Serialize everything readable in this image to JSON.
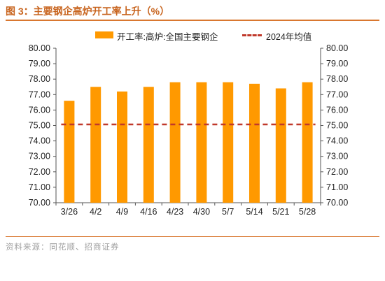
{
  "figure": {
    "title": "图 3：主要钢企高炉开工率上升（%）",
    "source": "资料来源：同花顺、招商证券"
  },
  "colors": {
    "bar": "#FF9900",
    "line": "#C0392B",
    "accent": "#D9772F"
  },
  "chart_data": {
    "type": "bar",
    "categories": [
      "3/26",
      "4/2",
      "4/9",
      "4/16",
      "4/23",
      "4/30",
      "5/7",
      "5/14",
      "5/21",
      "5/28"
    ],
    "series": [
      {
        "name": "开工率:高炉:全国主要钢企",
        "type": "bar",
        "values": [
          76.6,
          77.5,
          77.2,
          77.5,
          77.8,
          77.8,
          77.8,
          77.7,
          77.4,
          77.8
        ]
      },
      {
        "name": "2024年均值",
        "type": "line",
        "style": "dashed",
        "values": [
          75.07,
          75.07,
          75.07,
          75.07,
          75.07,
          75.07,
          75.07,
          75.07,
          75.07,
          75.07
        ]
      }
    ],
    "ylim": [
      70,
      80
    ],
    "yticks": [
      "70.00",
      "71.00",
      "72.00",
      "73.00",
      "74.00",
      "75.00",
      "76.00",
      "77.00",
      "78.00",
      "79.00",
      "80.00"
    ],
    "y2ticks": [
      "70.00",
      "71.00",
      "72.00",
      "73.00",
      "74.00",
      "75.00",
      "76.00",
      "77.00",
      "78.00",
      "79.00",
      "80.00"
    ],
    "grid": false,
    "legend": "top"
  }
}
